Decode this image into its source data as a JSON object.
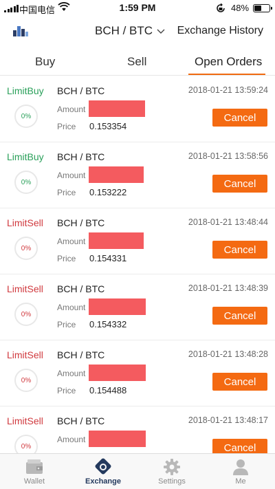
{
  "status_bar": {
    "carrier": "中国电信",
    "time": "1:59 PM",
    "battery": "48%",
    "battery_level": 0.48
  },
  "header": {
    "pair": "BCH / BTC",
    "history_label": "Exchange History"
  },
  "tabs": [
    {
      "label": "Buy",
      "active": false
    },
    {
      "label": "Sell",
      "active": false
    },
    {
      "label": "Open Orders",
      "active": true
    }
  ],
  "orders": {
    "amount_label": "Amount",
    "price_label": "Price",
    "cancel_label": "Cancel",
    "items": [
      {
        "type": "LimitBuy",
        "side": "buy",
        "pair": "BCH / BTC",
        "time": "2018-01-21 13:59:24",
        "price": "0.153354",
        "progress": "0%"
      },
      {
        "type": "LimitBuy",
        "side": "buy",
        "pair": "BCH / BTC",
        "time": "2018-01-21 13:58:56",
        "price": "0.153222",
        "progress": "0%"
      },
      {
        "type": "LimitSell",
        "side": "sell",
        "pair": "BCH / BTC",
        "time": "2018-01-21 13:48:44",
        "price": "0.154331",
        "progress": "0%"
      },
      {
        "type": "LimitSell",
        "side": "sell",
        "pair": "BCH / BTC",
        "time": "2018-01-21 13:48:39",
        "price": "0.154332",
        "progress": "0%"
      },
      {
        "type": "LimitSell",
        "side": "sell",
        "pair": "BCH / BTC",
        "time": "2018-01-21 13:48:28",
        "price": "0.154488",
        "progress": "0%"
      },
      {
        "type": "LimitSell",
        "side": "sell",
        "pair": "BCH / BTC",
        "time": "2018-01-21 13:48:17",
        "price": "",
        "progress": "0%"
      }
    ]
  },
  "bottom_nav": [
    {
      "label": "Wallet",
      "icon": "wallet-icon",
      "active": false
    },
    {
      "label": "Exchange",
      "icon": "exchange-icon",
      "active": true
    },
    {
      "label": "Settings",
      "icon": "gear-icon",
      "active": false
    },
    {
      "label": "Me",
      "icon": "person-icon",
      "active": false
    }
  ],
  "colors": {
    "accent": "#f46a12",
    "buy": "#2aa05a",
    "sell": "#d0393e",
    "active_nav": "#243a5e"
  }
}
